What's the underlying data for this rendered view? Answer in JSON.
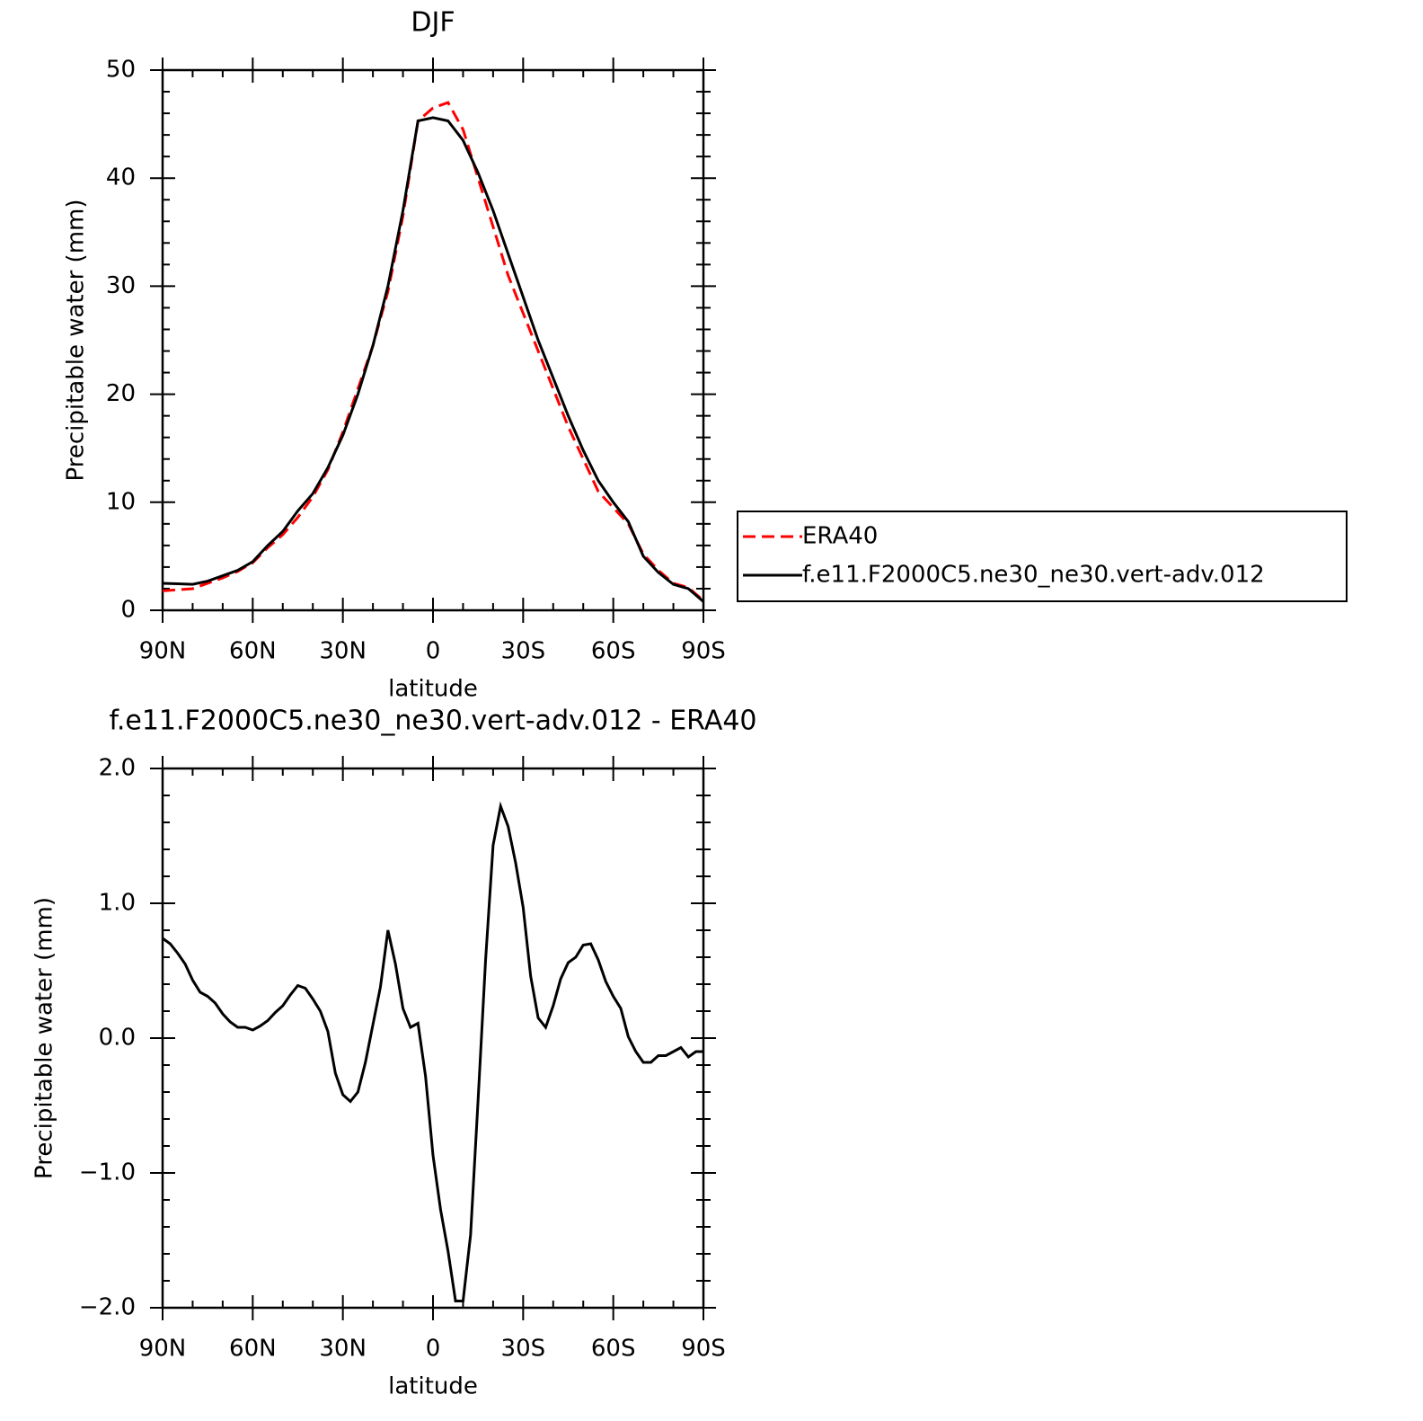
{
  "chart_data": [
    {
      "type": "line",
      "title": "DJF",
      "xlabel": "latitude",
      "ylabel": "Precipitable water (mm)",
      "x": [
        90,
        85,
        80,
        75,
        70,
        65,
        60,
        55,
        50,
        45,
        40,
        35,
        30,
        25,
        20,
        15,
        10,
        5,
        0,
        -5,
        -10,
        -15,
        -20,
        -25,
        -30,
        -35,
        -40,
        -45,
        -50,
        -55,
        -60,
        -65,
        -70,
        -75,
        -80,
        -85,
        -90
      ],
      "series": [
        {
          "name": "ERA40",
          "color": "#ff0000",
          "linestyle": "dashed",
          "values": [
            1.8,
            1.9,
            2.0,
            2.5,
            3.0,
            3.6,
            4.4,
            5.8,
            7.0,
            8.6,
            10.5,
            13.0,
            16.5,
            20.5,
            24.5,
            29.5,
            36.5,
            45.3,
            46.5,
            47.0,
            44.5,
            40.0,
            35.5,
            31.0,
            27.5,
            24.0,
            20.5,
            17.0,
            14.0,
            11.0,
            9.5,
            8.0,
            5.2,
            3.7,
            2.5,
            2.1,
            0.9
          ]
        },
        {
          "name": "f.e11.F2000C5.ne30_ne30.vert-adv.012",
          "color": "#000000",
          "linestyle": "solid",
          "values": [
            2.5,
            2.45,
            2.4,
            2.7,
            3.2,
            3.7,
            4.5,
            6.0,
            7.3,
            9.2,
            10.8,
            13.2,
            16.2,
            20.0,
            24.5,
            30.0,
            37.0,
            45.3,
            45.6,
            45.3,
            43.5,
            40.5,
            37.0,
            33.0,
            29.0,
            25.0,
            21.5,
            18.0,
            14.8,
            12.0,
            10.0,
            8.2,
            5.0,
            3.5,
            2.4,
            2.0,
            0.8
          ]
        }
      ],
      "xlim": [
        90,
        -90
      ],
      "xticks": [
        {
          "value": 90,
          "label": "90N"
        },
        {
          "value": 60,
          "label": "60N"
        },
        {
          "value": 30,
          "label": "30N"
        },
        0,
        {
          "value": -30,
          "label": "30S"
        },
        {
          "value": -60,
          "label": "60S"
        },
        {
          "value": -90,
          "label": "90S"
        }
      ],
      "ylim": [
        0,
        50
      ],
      "yticks": [
        0,
        10,
        20,
        30,
        40,
        50
      ],
      "legend": "right"
    },
    {
      "type": "line",
      "title": "f.e11.F2000C5.ne30_ne30.vert-adv.012 - ERA40",
      "xlabel": "latitude",
      "ylabel": "Precipitable water (mm)",
      "x": [
        90,
        87.5,
        85,
        82.5,
        80,
        77.5,
        75,
        72.5,
        70,
        67.5,
        65,
        62.5,
        60,
        57.5,
        55,
        52.5,
        50,
        47.5,
        45,
        42.5,
        40,
        37.5,
        35,
        32.5,
        30,
        27.5,
        25,
        22.5,
        20,
        17.5,
        15,
        12.5,
        10,
        7.5,
        5,
        2.5,
        0,
        -2.5,
        -5,
        -7.5,
        -10,
        -12.5,
        -15,
        -17.5,
        -20,
        -22.5,
        -25,
        -27.5,
        -30,
        -32.5,
        -35,
        -37.5,
        -40,
        -42.5,
        -45,
        -47.5,
        -50,
        -52.5,
        -55,
        -57.5,
        -60,
        -62.5,
        -65,
        -67.5,
        -70,
        -72.5,
        -75,
        -77.5,
        -80,
        -82.5,
        -85,
        -87.5,
        -90
      ],
      "series": [
        {
          "color": "#000000",
          "linestyle": "solid",
          "values": [
            0.74,
            0.7,
            0.63,
            0.55,
            0.43,
            0.34,
            0.31,
            0.26,
            0.18,
            0.12,
            0.08,
            0.08,
            0.06,
            0.09,
            0.13,
            0.19,
            0.24,
            0.32,
            0.39,
            0.37,
            0.29,
            0.2,
            0.05,
            -0.26,
            -0.42,
            -0.47,
            -0.4,
            -0.18,
            0.1,
            0.38,
            0.8,
            0.55,
            0.22,
            0.08,
            0.11,
            -0.28,
            -0.87,
            -1.27,
            -1.58,
            -1.95,
            -1.95,
            -1.46,
            -0.46,
            0.58,
            1.43,
            1.72,
            1.57,
            1.3,
            0.97,
            0.46,
            0.15,
            0.08,
            0.24,
            0.44,
            0.56,
            0.6,
            0.69,
            0.7,
            0.58,
            0.42,
            0.31,
            0.22,
            0.01,
            -0.1,
            -0.18,
            -0.18,
            -0.13,
            -0.13,
            -0.1,
            -0.07,
            -0.14,
            -0.1,
            -0.1
          ]
        }
      ],
      "xlim": [
        90,
        -90
      ],
      "xticks": [
        {
          "value": 90,
          "label": "90N"
        },
        {
          "value": 60,
          "label": "60N"
        },
        {
          "value": 30,
          "label": "30N"
        },
        0,
        {
          "value": -30,
          "label": "30S"
        },
        {
          "value": -60,
          "label": "60S"
        },
        {
          "value": -90,
          "label": "90S"
        }
      ],
      "ylim": [
        -2,
        2
      ],
      "yticks": [
        {
          "value": -2,
          "label": "−2.0"
        },
        {
          "value": -1,
          "label": "−1.0"
        },
        {
          "value": 0,
          "label": "0.0"
        },
        {
          "value": 1,
          "label": "1.0"
        },
        {
          "value": 2,
          "label": "2.0"
        }
      ]
    }
  ]
}
